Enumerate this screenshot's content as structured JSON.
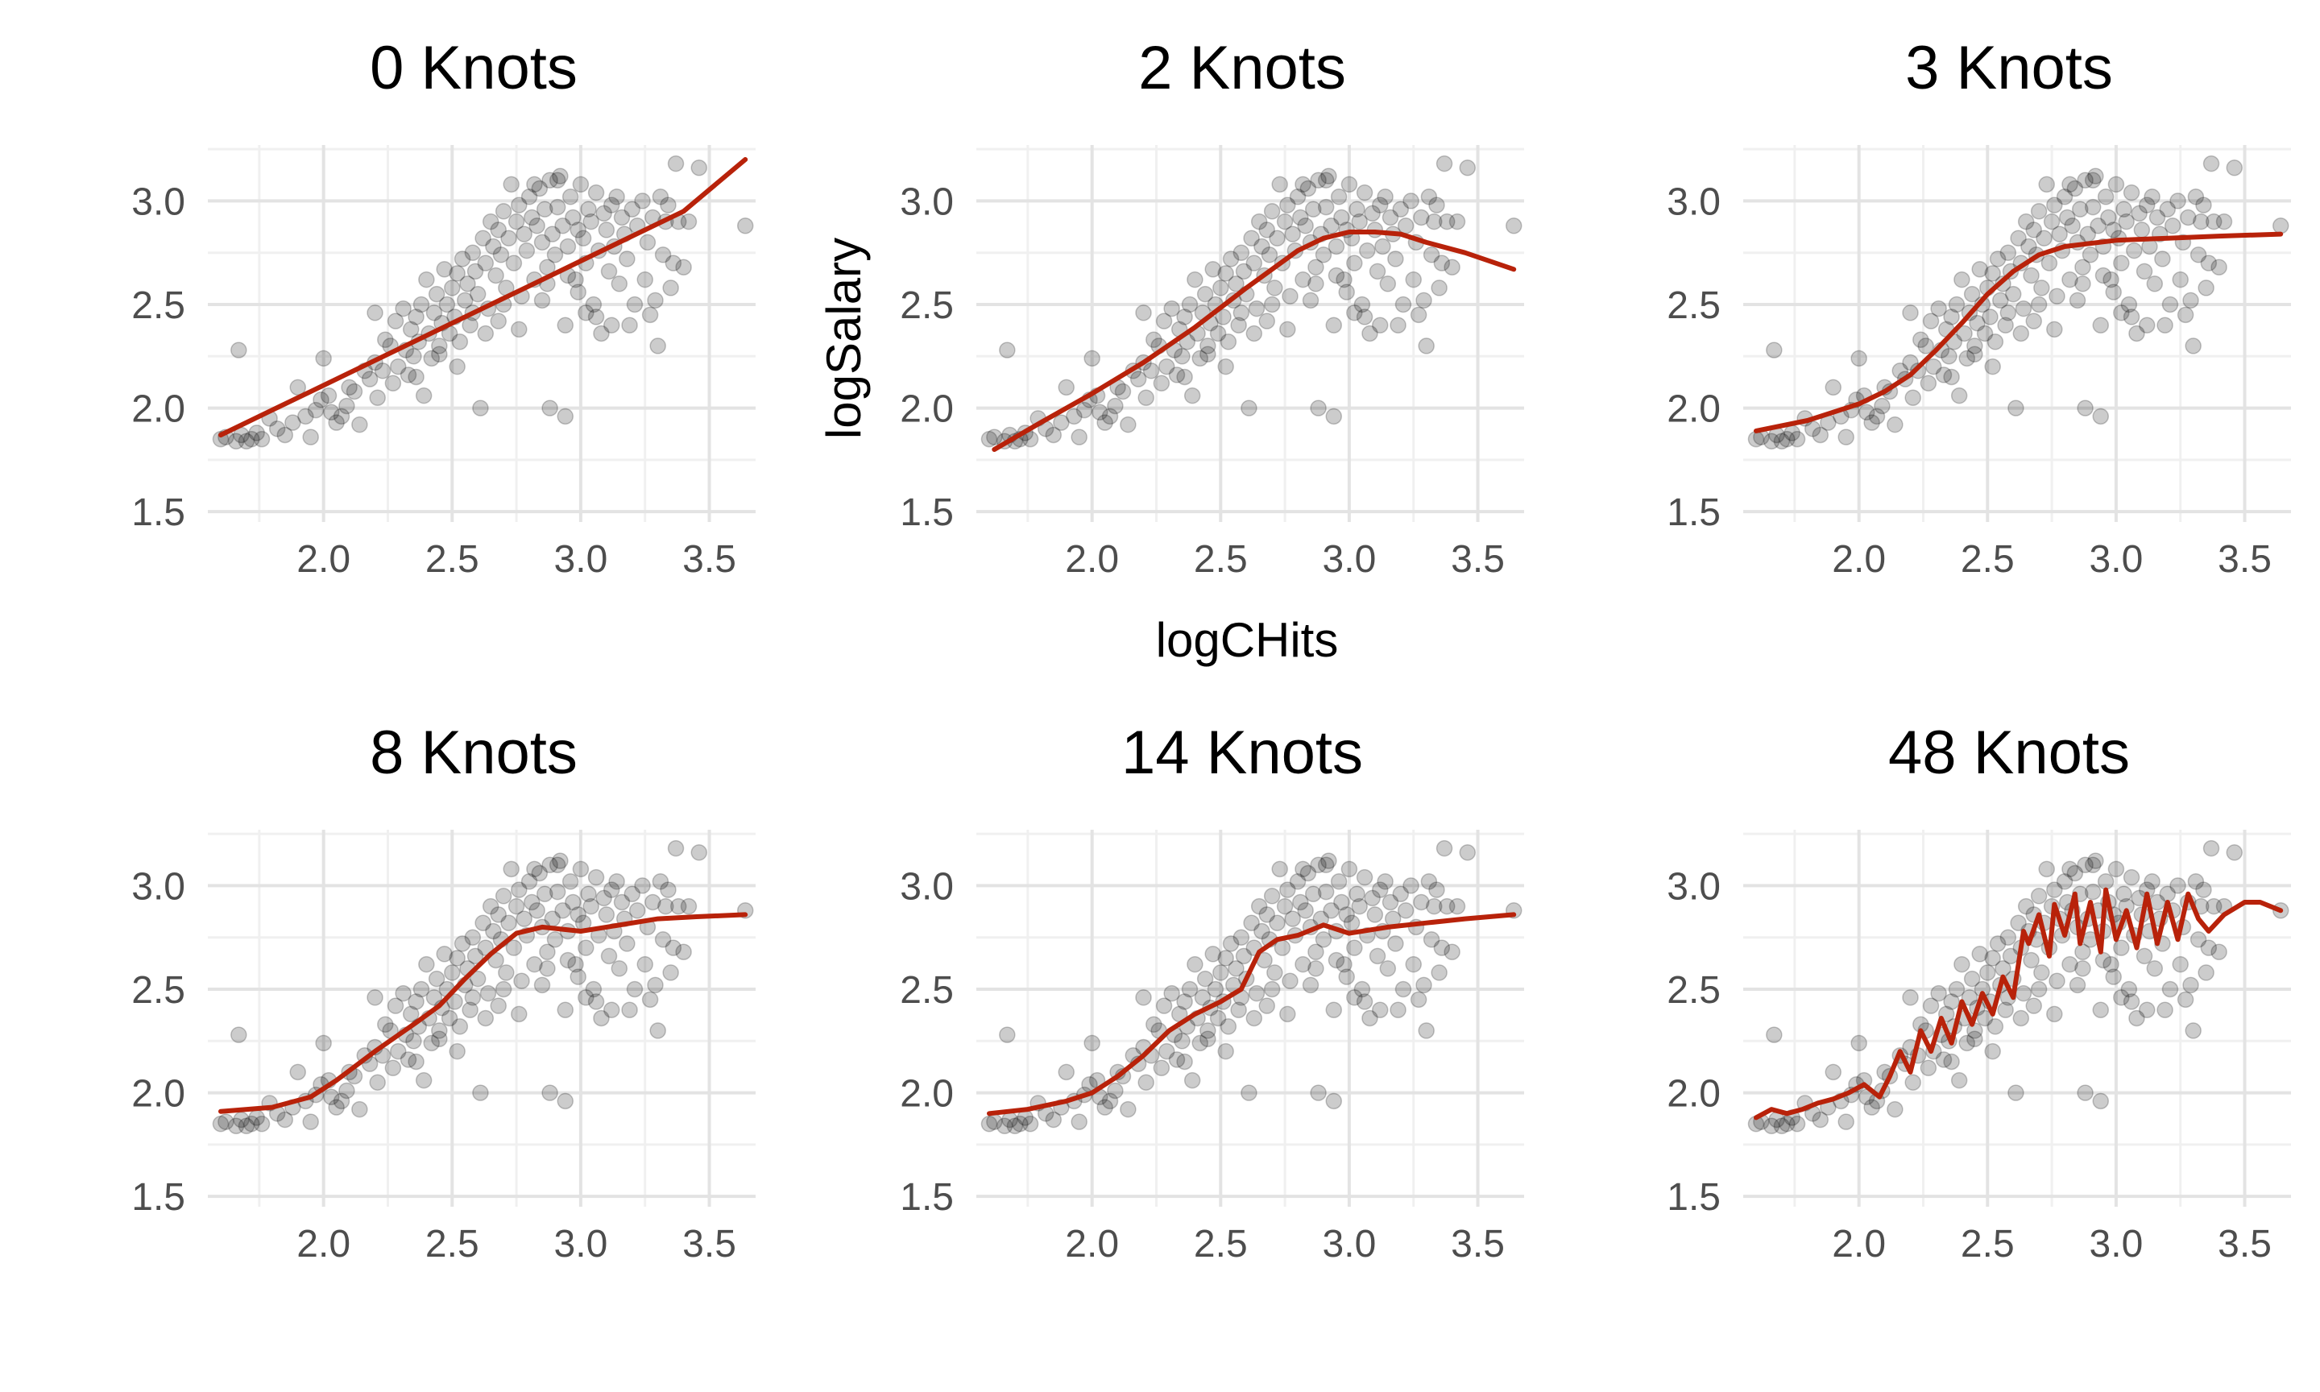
{
  "colors": {
    "fit_line": "#b8220a",
    "points": "#000000",
    "grid_major": "#e3e3e3",
    "grid_minor": "#f0f0f0",
    "tick_text": "#4d4d4d",
    "background": "#ffffff"
  },
  "axis_labels": {
    "x": "logCHits",
    "y": "logSalary"
  },
  "chart_data": [
    {
      "type": "scatter",
      "title": "0 Knots",
      "xlabel": "logCHits",
      "ylabel": "logSalary",
      "xlim": [
        1.55,
        3.68
      ],
      "ylim": [
        1.45,
        3.27
      ],
      "x_ticks": [
        "2.0",
        "2.5",
        "3.0",
        "3.5"
      ],
      "y_ticks": [
        "1.5",
        "2.0",
        "2.5",
        "3.0"
      ],
      "grid": true,
      "fit": {
        "x": [
          1.6,
          1.8,
          2.0,
          2.2,
          2.4,
          2.6,
          2.8,
          3.0,
          3.2,
          3.4,
          3.64
        ],
        "y": [
          1.87,
          1.99,
          2.11,
          2.23,
          2.35,
          2.47,
          2.59,
          2.71,
          2.83,
          2.95,
          3.2
        ]
      }
    },
    {
      "type": "scatter",
      "title": "2 Knots",
      "xlabel": "logCHits",
      "ylabel": "logSalary",
      "xlim": [
        1.55,
        3.68
      ],
      "ylim": [
        1.45,
        3.27
      ],
      "x_ticks": [
        "2.0",
        "2.5",
        "3.0",
        "3.5"
      ],
      "y_ticks": [
        "1.5",
        "2.0",
        "2.5",
        "3.0"
      ],
      "grid": true,
      "fit": {
        "x": [
          1.62,
          1.8,
          2.0,
          2.2,
          2.4,
          2.6,
          2.8,
          2.9,
          3.0,
          3.1,
          3.2,
          3.3,
          3.45,
          3.64
        ],
        "y": [
          1.8,
          1.93,
          2.07,
          2.22,
          2.39,
          2.58,
          2.76,
          2.82,
          2.85,
          2.85,
          2.84,
          2.8,
          2.75,
          2.67
        ]
      }
    },
    {
      "type": "scatter",
      "title": "3 Knots",
      "xlabel": "logCHits",
      "ylabel": "logSalary",
      "xlim": [
        1.55,
        3.68
      ],
      "ylim": [
        1.45,
        3.27
      ],
      "x_ticks": [
        "2.0",
        "2.5",
        "3.0",
        "3.5"
      ],
      "y_ticks": [
        "1.5",
        "2.0",
        "2.5",
        "3.0"
      ],
      "grid": true,
      "fit": {
        "x": [
          1.6,
          1.8,
          2.0,
          2.1,
          2.2,
          2.3,
          2.4,
          2.5,
          2.6,
          2.7,
          2.8,
          3.0,
          3.2,
          3.4,
          3.64
        ],
        "y": [
          1.89,
          1.94,
          2.02,
          2.08,
          2.16,
          2.28,
          2.41,
          2.55,
          2.66,
          2.74,
          2.78,
          2.81,
          2.82,
          2.83,
          2.84
        ]
      }
    },
    {
      "type": "scatter",
      "title": "8 Knots",
      "xlabel": "logCHits",
      "ylabel": "logSalary",
      "xlim": [
        1.55,
        3.68
      ],
      "ylim": [
        1.45,
        3.27
      ],
      "x_ticks": [
        "2.0",
        "2.5",
        "3.0",
        "3.5"
      ],
      "y_ticks": [
        "1.5",
        "2.0",
        "2.5",
        "3.0"
      ],
      "grid": true,
      "fit": {
        "x": [
          1.6,
          1.8,
          1.95,
          2.05,
          2.2,
          2.35,
          2.45,
          2.55,
          2.65,
          2.75,
          2.85,
          3.0,
          3.1,
          3.3,
          3.45,
          3.64
        ],
        "y": [
          1.91,
          1.93,
          1.98,
          2.06,
          2.2,
          2.33,
          2.42,
          2.55,
          2.67,
          2.77,
          2.8,
          2.78,
          2.8,
          2.84,
          2.85,
          2.86
        ]
      }
    },
    {
      "type": "scatter",
      "title": "14 Knots",
      "xlabel": "logCHits",
      "ylabel": "logSalary",
      "xlim": [
        1.55,
        3.68
      ],
      "ylim": [
        1.45,
        3.27
      ],
      "x_ticks": [
        "2.0",
        "2.5",
        "3.0",
        "3.5"
      ],
      "y_ticks": [
        "1.5",
        "2.0",
        "2.5",
        "3.0"
      ],
      "grid": true,
      "fit": {
        "x": [
          1.6,
          1.75,
          1.9,
          2.0,
          2.1,
          2.2,
          2.3,
          2.4,
          2.5,
          2.58,
          2.65,
          2.72,
          2.8,
          2.9,
          3.0,
          3.15,
          3.3,
          3.45,
          3.64
        ],
        "y": [
          1.9,
          1.92,
          1.96,
          2.0,
          2.08,
          2.18,
          2.3,
          2.38,
          2.44,
          2.5,
          2.68,
          2.74,
          2.76,
          2.81,
          2.77,
          2.8,
          2.82,
          2.84,
          2.86
        ]
      }
    },
    {
      "type": "scatter",
      "title": "48 Knots",
      "xlabel": "logCHits",
      "ylabel": "logSalary",
      "xlim": [
        1.55,
        3.68
      ],
      "ylim": [
        1.45,
        3.27
      ],
      "x_ticks": [
        "2.0",
        "2.5",
        "3.0",
        "3.5"
      ],
      "y_ticks": [
        "1.5",
        "2.0",
        "2.5",
        "3.0"
      ],
      "grid": true,
      "fit": {
        "x": [
          1.6,
          1.66,
          1.72,
          1.78,
          1.84,
          1.9,
          1.96,
          2.02,
          2.08,
          2.12,
          2.16,
          2.2,
          2.24,
          2.28,
          2.32,
          2.36,
          2.4,
          2.44,
          2.48,
          2.52,
          2.56,
          2.6,
          2.64,
          2.66,
          2.7,
          2.74,
          2.76,
          2.8,
          2.84,
          2.86,
          2.9,
          2.94,
          2.96,
          3.0,
          3.04,
          3.08,
          3.12,
          3.16,
          3.2,
          3.24,
          3.28,
          3.32,
          3.36,
          3.42,
          3.5,
          3.56,
          3.64
        ],
        "y": [
          1.88,
          1.92,
          1.9,
          1.92,
          1.95,
          1.97,
          2.0,
          2.04,
          1.98,
          2.08,
          2.2,
          2.1,
          2.3,
          2.2,
          2.36,
          2.24,
          2.44,
          2.33,
          2.48,
          2.38,
          2.56,
          2.46,
          2.78,
          2.72,
          2.86,
          2.66,
          2.91,
          2.76,
          2.96,
          2.72,
          2.92,
          2.68,
          2.98,
          2.74,
          2.88,
          2.7,
          2.96,
          2.72,
          2.92,
          2.74,
          2.96,
          2.84,
          2.78,
          2.86,
          2.92,
          2.92,
          2.88
        ]
      }
    }
  ]
}
